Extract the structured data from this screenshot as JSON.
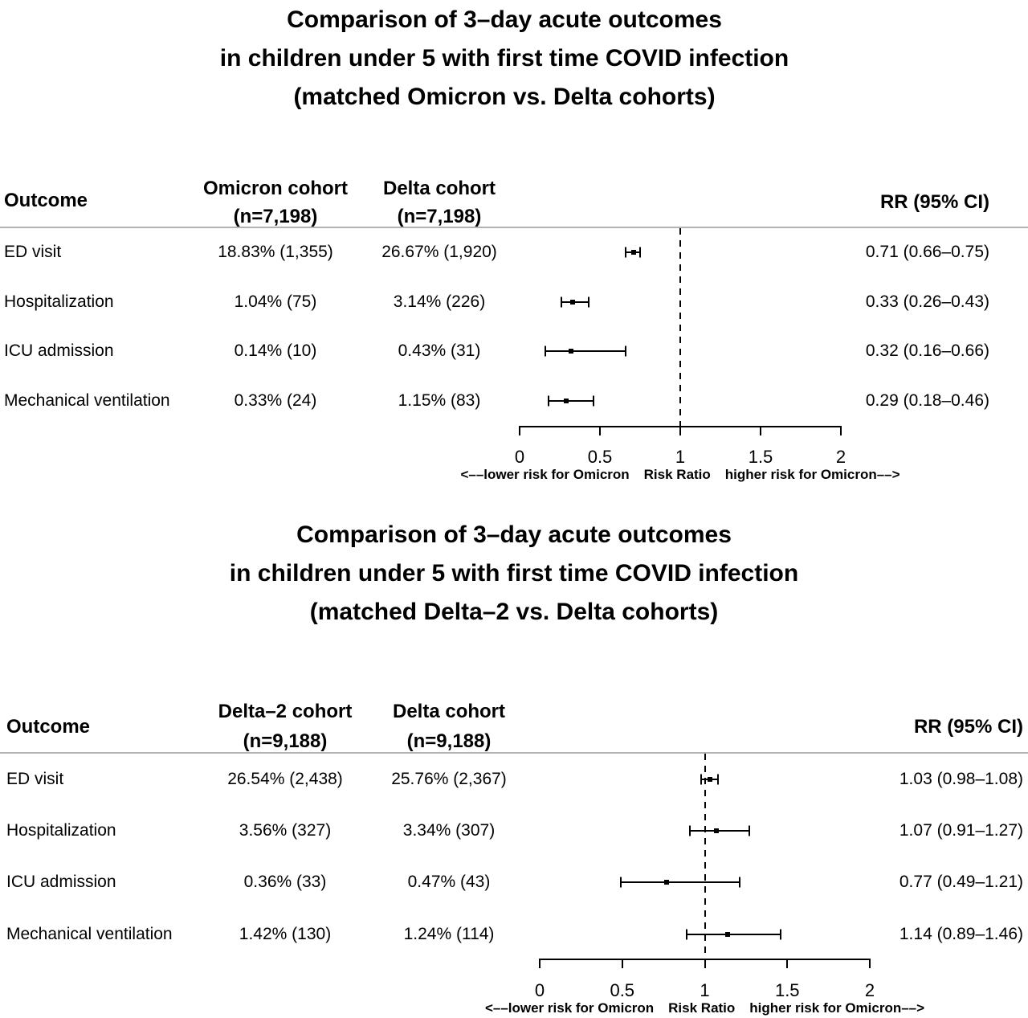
{
  "chart_data": [
    {
      "type": "scatter",
      "subtype": "forest-plot",
      "title_lines": [
        "Comparison of 3–day acute outcomes",
        "in children under 5 with first time COVID infection",
        "(matched Omicron vs. Delta cohorts)"
      ],
      "columns": {
        "outcome_header": "Outcome",
        "cohort1_header_line1": "Omicron cohort",
        "cohort1_header_line2": "(n=7,198)",
        "cohort2_header_line1": "Delta cohort",
        "cohort2_header_line2": "(n=7,198)",
        "rr_header": "RR (95% CI)"
      },
      "rows": [
        {
          "outcome": "ED visit",
          "cohort1": "18.83% (1,355)",
          "cohort2": "26.67% (1,920)",
          "rr": 0.71,
          "ci_low": 0.66,
          "ci_high": 0.75,
          "rr_label": "0.71 (0.66–0.75)"
        },
        {
          "outcome": "Hospitalization",
          "cohort1": "1.04% (75)",
          "cohort2": "3.14% (226)",
          "rr": 0.33,
          "ci_low": 0.26,
          "ci_high": 0.43,
          "rr_label": "0.33 (0.26–0.43)"
        },
        {
          "outcome": "ICU admission",
          "cohort1": "0.14% (10)",
          "cohort2": "0.43% (31)",
          "rr": 0.32,
          "ci_low": 0.16,
          "ci_high": 0.66,
          "rr_label": "0.32 (0.16–0.66)"
        },
        {
          "outcome": "Mechanical ventilation",
          "cohort1": "0.33% (24)",
          "cohort2": "1.15% (83)",
          "rr": 0.29,
          "ci_low": 0.18,
          "ci_high": 0.46,
          "rr_label": "0.29 (0.18–0.46)"
        }
      ],
      "axis": {
        "xlabel": "Risk Ratio",
        "xlim": [
          0,
          2
        ],
        "tick_values": [
          0,
          0.5,
          1,
          1.5,
          2
        ],
        "tick_labels": [
          "0",
          "0.5",
          "1",
          "1.5",
          "2"
        ],
        "reference_line": 1,
        "left_label": "<––lower risk for Omicron",
        "center_label": "Risk Ratio",
        "right_label": "higher risk for Omicron––>"
      }
    },
    {
      "type": "scatter",
      "subtype": "forest-plot",
      "title_lines": [
        "Comparison of 3–day acute outcomes",
        "in children under 5 with first time COVID infection",
        "(matched Delta–2 vs. Delta cohorts)"
      ],
      "columns": {
        "outcome_header": "Outcome",
        "cohort1_header_line1": "Delta–2 cohort",
        "cohort1_header_line2": "(n=9,188)",
        "cohort2_header_line1": "Delta cohort",
        "cohort2_header_line2": "(n=9,188)",
        "rr_header": "RR (95% CI)"
      },
      "rows": [
        {
          "outcome": "ED visit",
          "cohort1": "26.54% (2,438)",
          "cohort2": "25.76% (2,367)",
          "rr": 1.03,
          "ci_low": 0.98,
          "ci_high": 1.08,
          "rr_label": "1.03 (0.98–1.08)"
        },
        {
          "outcome": "Hospitalization",
          "cohort1": "3.56% (327)",
          "cohort2": "3.34% (307)",
          "rr": 1.07,
          "ci_low": 0.91,
          "ci_high": 1.27,
          "rr_label": "1.07 (0.91–1.27)"
        },
        {
          "outcome": "ICU admission",
          "cohort1": "0.36% (33)",
          "cohort2": "0.47% (43)",
          "rr": 0.77,
          "ci_low": 0.49,
          "ci_high": 1.21,
          "rr_label": "0.77 (0.49–1.21)"
        },
        {
          "outcome": "Mechanical ventilation",
          "cohort1": "1.42% (130)",
          "cohort2": "1.24% (114)",
          "rr": 1.14,
          "ci_low": 0.89,
          "ci_high": 1.46,
          "rr_label": "1.14 (0.89–1.46)"
        }
      ],
      "axis": {
        "xlabel": "Risk Ratio",
        "xlim": [
          0,
          2
        ],
        "tick_values": [
          0,
          0.5,
          1,
          1.5,
          2
        ],
        "tick_labels": [
          "0",
          "0.5",
          "1",
          "1.5",
          "2"
        ],
        "reference_line": 1,
        "left_label": "<––lower risk for Omicron",
        "center_label": "Risk Ratio",
        "right_label": "higher risk for Omicron––>"
      }
    }
  ],
  "colors": {
    "text": "#000000",
    "rule": "#b3b3b3",
    "marker": "#000000",
    "background": "#ffffff"
  }
}
